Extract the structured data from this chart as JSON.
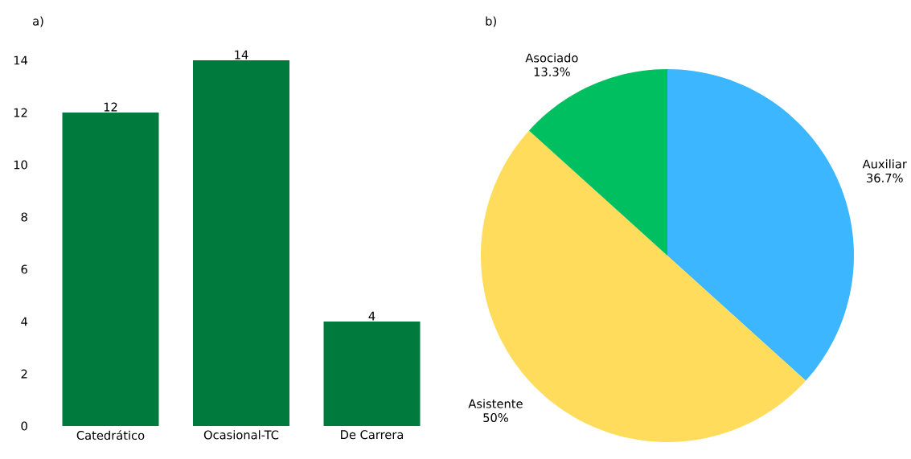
{
  "chart_data": [
    {
      "type": "bar",
      "title": "a)",
      "categories": [
        "Catedrático",
        "Ocasional-TC",
        "De Carrera"
      ],
      "values": [
        12,
        14,
        4
      ],
      "color": "#007a3d",
      "ylim": [
        0,
        14
      ],
      "yticks": [
        0,
        2,
        4,
        6,
        8,
        10,
        12,
        14
      ],
      "data_labels": true
    },
    {
      "type": "pie",
      "title": "b)",
      "categories": [
        "Auxiliar",
        "Asistente",
        "Asociado"
      ],
      "values": [
        36.7,
        50,
        13.3
      ],
      "colors": [
        "#3bb6ff",
        "#ffdc5c",
        "#00bf60"
      ],
      "value_labels": [
        "36.7%",
        "50%",
        "13.3%"
      ]
    }
  ]
}
